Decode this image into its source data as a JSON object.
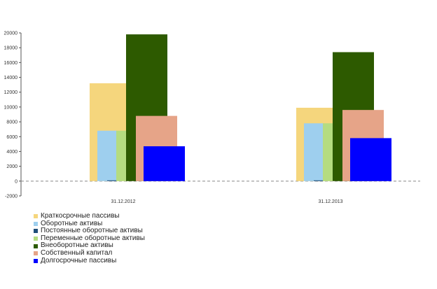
{
  "chart_data": {
    "type": "bar",
    "categories": [
      "31.12.2012",
      "31.12.2013"
    ],
    "ylim": [
      -2000,
      20000
    ],
    "yticks": [
      -2000,
      0,
      2000,
      4000,
      6000,
      8000,
      10000,
      12000,
      14000,
      16000,
      18000,
      20000
    ],
    "grid": false,
    "legend_position": "bottom-left",
    "series": [
      {
        "name": "Краткосрочные пассивы",
        "color": "#f5d67d",
        "values": [
          13200,
          9900
        ]
      },
      {
        "name": "Оборотные активы",
        "color": "#9ecfee",
        "values": [
          6800,
          7800
        ]
      },
      {
        "name": "Постоянные оборотные активы",
        "color": "#1f4e79",
        "values": [
          100,
          100
        ]
      },
      {
        "name": "Переменные оборотные активы",
        "color": "#b5dc80",
        "values": [
          6800,
          7800
        ]
      },
      {
        "name": "Внеоборотные активы",
        "color": "#2d5a00",
        "values": [
          19800,
          17400
        ]
      },
      {
        "name": "Собственный капитал",
        "color": "#e6a488",
        "values": [
          8800,
          9600
        ]
      },
      {
        "name": "Долгосрочные пассивы",
        "color": "#0000ff",
        "values": [
          4700,
          5800
        ]
      }
    ]
  }
}
